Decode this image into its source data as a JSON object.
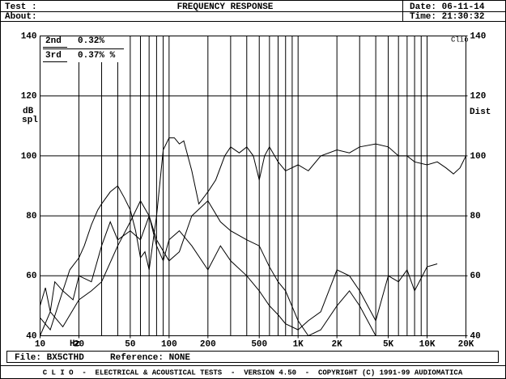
{
  "header": {
    "test": "Test :",
    "about": "About:",
    "date": "Date: 06-11-14",
    "time": "Time: 21:30:32"
  },
  "chart_data": {
    "type": "line",
    "title": "FREQUENCY RESPONSE",
    "y_label_1": "dB",
    "y_label_2": "spl",
    "y2_label": "Dist",
    "corner_label": "Clio",
    "x_unit": "Hz",
    "xscale": "log",
    "xlim": [
      10,
      20000
    ],
    "ylim": [
      40,
      140
    ],
    "y2lim": [
      40,
      140
    ],
    "xticks": [
      10,
      20,
      50,
      100,
      200,
      500,
      {
        "value": 1000,
        "label": "1K"
      },
      {
        "value": 2000,
        "label": "2K"
      },
      {
        "value": 5000,
        "label": "5K"
      },
      {
        "value": 10000,
        "label": "10K"
      },
      {
        "value": 20000,
        "label": "20K"
      }
    ],
    "xgrid": [
      20,
      30,
      40,
      50,
      60,
      70,
      80,
      90,
      100,
      200,
      300,
      400,
      500,
      600,
      700,
      800,
      900,
      1000,
      2000,
      3000,
      4000,
      5000,
      6000,
      7000,
      8000,
      9000,
      10000
    ],
    "yticks": [
      40,
      60,
      80,
      100,
      120,
      140
    ],
    "y2ticks": [
      40,
      60,
      80,
      100,
      120,
      140
    ],
    "grid": true,
    "series": [
      {
        "color": "#000000",
        "x": [
          10,
          11,
          12,
          13,
          15,
          17,
          20,
          22,
          25,
          28,
          30,
          35,
          40,
          45,
          50,
          55,
          60,
          65,
          70,
          80,
          90,
          100,
          110,
          120,
          130,
          150,
          170,
          200,
          230,
          270,
          300,
          350,
          400,
          450,
          500,
          550,
          600,
          700,
          800,
          1000,
          1200,
          1500,
          2000,
          2500,
          3000,
          4000,
          5000,
          6000,
          7000,
          8000,
          10000,
          12000,
          14000,
          16000,
          18000,
          20000
        ],
        "values": [
          50,
          56,
          48,
          58,
          55,
          62,
          66,
          70,
          77,
          82,
          84,
          88,
          90,
          86,
          82,
          75,
          66,
          68,
          62,
          80,
          102,
          106,
          106,
          104,
          105,
          95,
          84,
          88,
          92,
          100,
          103,
          101,
          103,
          100,
          92,
          100,
          103,
          98,
          95,
          97,
          95,
          100,
          102,
          101,
          103,
          104,
          103,
          100,
          100,
          98,
          97,
          98,
          96,
          94,
          96,
          100
        ]
      },
      {
        "name": "2nd",
        "legend_value": "0.32%",
        "color": "#000000",
        "axis": "y2",
        "x": [
          10,
          12,
          15,
          18,
          20,
          25,
          30,
          35,
          40,
          50,
          60,
          70,
          80,
          90,
          100,
          120,
          150,
          200,
          250,
          300,
          400,
          500,
          600,
          700,
          800,
          1000,
          1200,
          1500,
          2000,
          2500,
          3000,
          4000,
          5000,
          6000,
          7000,
          8000,
          10000,
          12000
        ],
        "values": [
          46,
          42,
          55,
          52,
          60,
          58,
          70,
          78,
          72,
          75,
          72,
          80,
          70,
          65,
          72,
          75,
          70,
          62,
          70,
          65,
          60,
          55,
          50,
          47,
          44,
          42,
          45,
          48,
          62,
          60,
          55,
          45,
          60,
          58,
          62,
          55,
          63,
          64
        ]
      },
      {
        "name": "3rd",
        "legend_value": "0.37% %",
        "color": "#000000",
        "axis": "y2",
        "x": [
          10,
          12,
          15,
          20,
          25,
          30,
          40,
          50,
          60,
          70,
          80,
          100,
          120,
          150,
          200,
          250,
          300,
          400,
          500,
          600,
          700,
          800,
          1000,
          1200,
          1500,
          2000,
          2500,
          3000,
          4000
        ],
        "values": [
          40,
          48,
          43,
          52,
          55,
          58,
          70,
          78,
          85,
          80,
          72,
          65,
          68,
          80,
          85,
          78,
          75,
          72,
          70,
          63,
          58,
          55,
          45,
          40,
          42,
          50,
          55,
          50,
          40
        ]
      }
    ]
  },
  "footer": {
    "file": "File: BX5CTHD",
    "reference": "Reference: NONE",
    "banner": "C L I O  -  ELECTRICAL & ACOUSTICAL TESTS  -  VERSION 4.50  -  COPYRIGHT (C) 1991-99 AUDIOMATICA"
  }
}
